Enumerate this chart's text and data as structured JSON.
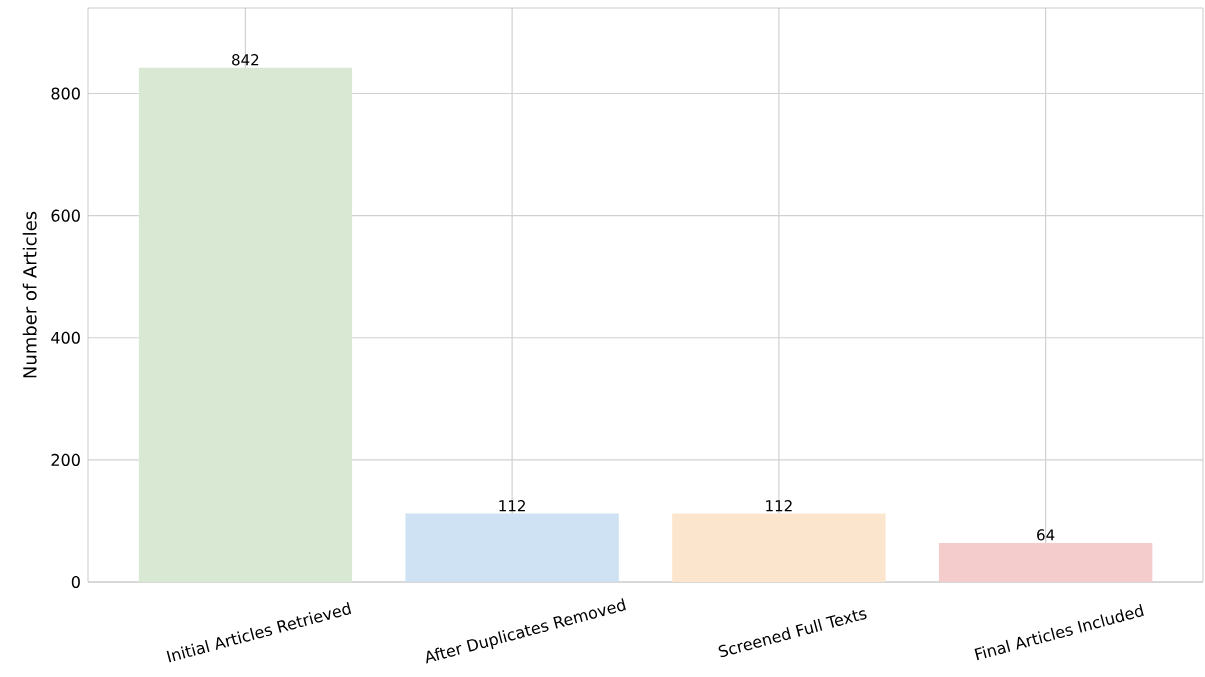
{
  "chart_data": {
    "type": "bar",
    "ylabel": "Number of Articles",
    "categories": [
      "Initial Articles Retrieved",
      "After Duplicates Removed",
      "Screened Full Texts",
      "Final Articles Included"
    ],
    "values": [
      842,
      112,
      112,
      64
    ],
    "colors": [
      "#d9e8d3",
      "#cfe2f3",
      "#fce5cd",
      "#f4cccc"
    ],
    "ylim": [
      0,
      940
    ],
    "yticks": [
      0,
      200,
      400,
      600,
      800
    ],
    "grid": true,
    "data_labels": true
  }
}
